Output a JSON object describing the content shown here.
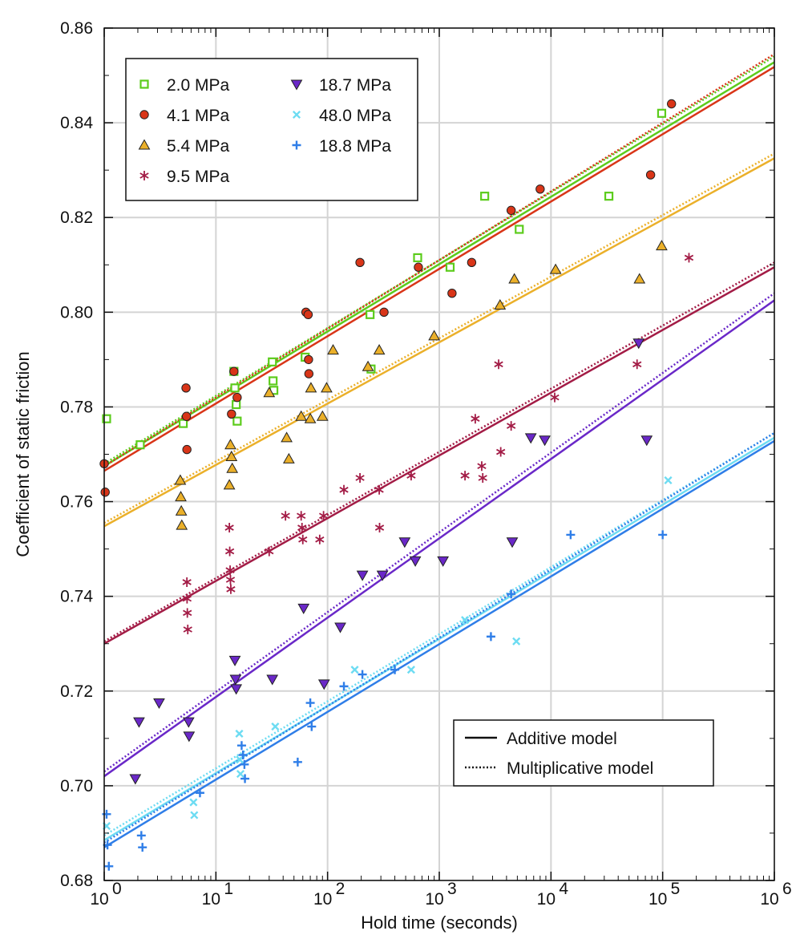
{
  "chart_data": {
    "type": "scatter",
    "title": "",
    "xlabel": "Hold time (seconds)",
    "ylabel": "Coefficient of static friction",
    "xscale": "log",
    "xlim": [
      1,
      1000000
    ],
    "ylim": [
      0.68,
      0.86
    ],
    "x_ticks": [
      {
        "value": 1,
        "base": "10",
        "exp": "0"
      },
      {
        "value": 10,
        "base": "10",
        "exp": "1"
      },
      {
        "value": 100,
        "base": "10",
        "exp": "2"
      },
      {
        "value": 1000,
        "base": "10",
        "exp": "3"
      },
      {
        "value": 10000,
        "base": "10",
        "exp": "4"
      },
      {
        "value": 100000,
        "base": "10",
        "exp": "5"
      },
      {
        "value": 1000000,
        "base": "10",
        "exp": "6"
      }
    ],
    "y_ticks": [
      {
        "value": 0.68,
        "label": "0.68"
      },
      {
        "value": 0.7,
        "label": "0.70"
      },
      {
        "value": 0.72,
        "label": "0.72"
      },
      {
        "value": 0.74,
        "label": "0.74"
      },
      {
        "value": 0.76,
        "label": "0.76"
      },
      {
        "value": 0.78,
        "label": "0.78"
      },
      {
        "value": 0.8,
        "label": "0.80"
      },
      {
        "value": 0.82,
        "label": "0.82"
      },
      {
        "value": 0.84,
        "label": "0.84"
      },
      {
        "value": 0.86,
        "label": "0.86"
      }
    ],
    "grid": true,
    "legend_position": "top-left",
    "series": [
      {
        "name": "2.0 MPa",
        "marker": "open-square",
        "color": "#5ccc1c",
        "fit": {
          "additive": [
            0.7675,
            0.8528
          ],
          "multiplicative": [
            0.768,
            0.854
          ]
        },
        "points": [
          [
            1.05,
            0.7775
          ],
          [
            2.1,
            0.772
          ],
          [
            5.1,
            0.7765
          ],
          [
            14.5,
            0.7875
          ],
          [
            14.8,
            0.784
          ],
          [
            15.2,
            0.7805
          ],
          [
            15.5,
            0.777
          ],
          [
            32,
            0.7895
          ],
          [
            32.5,
            0.7855
          ],
          [
            33,
            0.7835
          ],
          [
            63,
            0.7905
          ],
          [
            240,
            0.7995
          ],
          [
            245,
            0.788
          ],
          [
            640,
            0.8115
          ],
          [
            1250,
            0.8095
          ],
          [
            2550,
            0.8245
          ],
          [
            5200,
            0.8175
          ],
          [
            33000,
            0.8245
          ],
          [
            98000,
            0.842
          ]
        ]
      },
      {
        "name": "4.1 MPa",
        "marker": "circle",
        "color": "#d93518",
        "fit": {
          "additive": [
            0.7665,
            0.8518
          ],
          "multiplicative": [
            0.7675,
            0.8545
          ]
        },
        "points": [
          [
            1.0,
            0.768
          ],
          [
            1.02,
            0.762
          ],
          [
            5.4,
            0.784
          ],
          [
            5.45,
            0.778
          ],
          [
            5.5,
            0.771
          ],
          [
            13.8,
            0.7785
          ],
          [
            14.5,
            0.7875
          ],
          [
            15.5,
            0.782
          ],
          [
            64,
            0.8
          ],
          [
            67,
            0.7995
          ],
          [
            67.5,
            0.79
          ],
          [
            68,
            0.787
          ],
          [
            195,
            0.8105
          ],
          [
            320,
            0.8
          ],
          [
            650,
            0.8095
          ],
          [
            1300,
            0.804
          ],
          [
            1950,
            0.8105
          ],
          [
            4400,
            0.8215
          ],
          [
            8000,
            0.826
          ],
          [
            78000,
            0.829
          ],
          [
            120000,
            0.844
          ]
        ]
      },
      {
        "name": "5.4 MPa",
        "marker": "triangle-up",
        "color": "#ebb02a",
        "fit": {
          "additive": [
            0.7548,
            0.8325
          ],
          "multiplicative": [
            0.7555,
            0.8335
          ]
        },
        "points": [
          [
            4.8,
            0.7645
          ],
          [
            4.85,
            0.761
          ],
          [
            4.9,
            0.758
          ],
          [
            4.95,
            0.755
          ],
          [
            13.2,
            0.7635
          ],
          [
            13.5,
            0.772
          ],
          [
            13.8,
            0.7695
          ],
          [
            14,
            0.767
          ],
          [
            30,
            0.783
          ],
          [
            43,
            0.7735
          ],
          [
            45,
            0.769
          ],
          [
            58,
            0.778
          ],
          [
            70,
            0.7775
          ],
          [
            71,
            0.784
          ],
          [
            90,
            0.778
          ],
          [
            98,
            0.784
          ],
          [
            112,
            0.792
          ],
          [
            230,
            0.7885
          ],
          [
            290,
            0.792
          ],
          [
            900,
            0.795
          ],
          [
            3500,
            0.8015
          ],
          [
            4700,
            0.807
          ],
          [
            11000,
            0.809
          ],
          [
            62000,
            0.807
          ],
          [
            98000,
            0.814
          ]
        ]
      },
      {
        "name": "9.5 MPa",
        "marker": "asterisk",
        "color": "#a31c46",
        "fit": {
          "additive": [
            0.73,
            0.8095
          ],
          "multiplicative": [
            0.7305,
            0.8105
          ]
        },
        "points": [
          [
            5.5,
            0.743
          ],
          [
            5.52,
            0.7395
          ],
          [
            5.55,
            0.7365
          ],
          [
            5.6,
            0.733
          ],
          [
            13.2,
            0.7545
          ],
          [
            13.3,
            0.7495
          ],
          [
            13.4,
            0.7455
          ],
          [
            13.5,
            0.7435
          ],
          [
            13.6,
            0.7415
          ],
          [
            30,
            0.7495
          ],
          [
            42,
            0.757
          ],
          [
            58,
            0.757
          ],
          [
            59,
            0.7545
          ],
          [
            60,
            0.752
          ],
          [
            85,
            0.752
          ],
          [
            92,
            0.757
          ],
          [
            140,
            0.7625
          ],
          [
            195,
            0.765
          ],
          [
            290,
            0.7625
          ],
          [
            292,
            0.7545
          ],
          [
            560,
            0.7655
          ],
          [
            1700,
            0.7655
          ],
          [
            2100,
            0.7775
          ],
          [
            2400,
            0.7675
          ],
          [
            2450,
            0.765
          ],
          [
            3400,
            0.789
          ],
          [
            3550,
            0.7705
          ],
          [
            4400,
            0.776
          ],
          [
            10800,
            0.782
          ],
          [
            59000,
            0.789
          ],
          [
            172000,
            0.8115
          ]
        ]
      },
      {
        "name": "18.7 MPa",
        "marker": "triangle-down",
        "color": "#6a28c8",
        "fit": {
          "additive": [
            0.702,
            0.8025
          ],
          "multiplicative": [
            0.703,
            0.804
          ]
        },
        "points": [
          [
            1.9,
            0.7015
          ],
          [
            2.05,
            0.7135
          ],
          [
            3.1,
            0.7175
          ],
          [
            5.7,
            0.7135
          ],
          [
            5.75,
            0.7105
          ],
          [
            14.8,
            0.7265
          ],
          [
            15,
            0.7225
          ],
          [
            15.2,
            0.7205
          ],
          [
            32,
            0.7225
          ],
          [
            61,
            0.7375
          ],
          [
            93,
            0.7215
          ],
          [
            130,
            0.7335
          ],
          [
            205,
            0.7445
          ],
          [
            310,
            0.7445
          ],
          [
            490,
            0.7515
          ],
          [
            610,
            0.7475
          ],
          [
            1080,
            0.7475
          ],
          [
            4500,
            0.7515
          ],
          [
            6600,
            0.7735
          ],
          [
            8800,
            0.773
          ],
          [
            61000,
            0.7935
          ],
          [
            72000,
            0.773
          ]
        ]
      },
      {
        "name": "48.0 MPa",
        "marker": "x",
        "color": "#6ddcf2",
        "fit": {
          "additive": [
            0.6885,
            0.7735
          ],
          "multiplicative": [
            0.6895,
            0.7745
          ]
        },
        "points": [
          [
            1.05,
            0.6915
          ],
          [
            6.3,
            0.6965
          ],
          [
            6.4,
            0.6938
          ],
          [
            16.2,
            0.711
          ],
          [
            16.4,
            0.7055
          ],
          [
            16.6,
            0.7025
          ],
          [
            34,
            0.7125
          ],
          [
            175,
            0.7245
          ],
          [
            560,
            0.7245
          ],
          [
            1700,
            0.735
          ],
          [
            4900,
            0.7305
          ],
          [
            112000,
            0.7645
          ]
        ]
      },
      {
        "name": "18.8 MPa",
        "marker": "plus",
        "color": "#2f7ee8",
        "fit": {
          "additive": [
            0.687,
            0.7728
          ],
          "multiplicative": [
            0.688,
            0.7745
          ]
        },
        "points": [
          [
            1.05,
            0.694
          ],
          [
            1.07,
            0.6875
          ],
          [
            1.1,
            0.683
          ],
          [
            2.15,
            0.6895
          ],
          [
            2.2,
            0.687
          ],
          [
            7.2,
            0.6985
          ],
          [
            17,
            0.7085
          ],
          [
            17.5,
            0.7065
          ],
          [
            18,
            0.7045
          ],
          [
            18.2,
            0.7015
          ],
          [
            54,
            0.705
          ],
          [
            70,
            0.7175
          ],
          [
            72,
            0.7125
          ],
          [
            140,
            0.721
          ],
          [
            205,
            0.7235
          ],
          [
            400,
            0.7245
          ],
          [
            2900,
            0.7315
          ],
          [
            4400,
            0.7405
          ],
          [
            15000,
            0.753
          ],
          [
            100000,
            0.753
          ]
        ]
      }
    ],
    "model_legend": [
      {
        "name": "Additive model",
        "style": "solid"
      },
      {
        "name": "Multiplicative model",
        "style": "dotted"
      }
    ]
  }
}
